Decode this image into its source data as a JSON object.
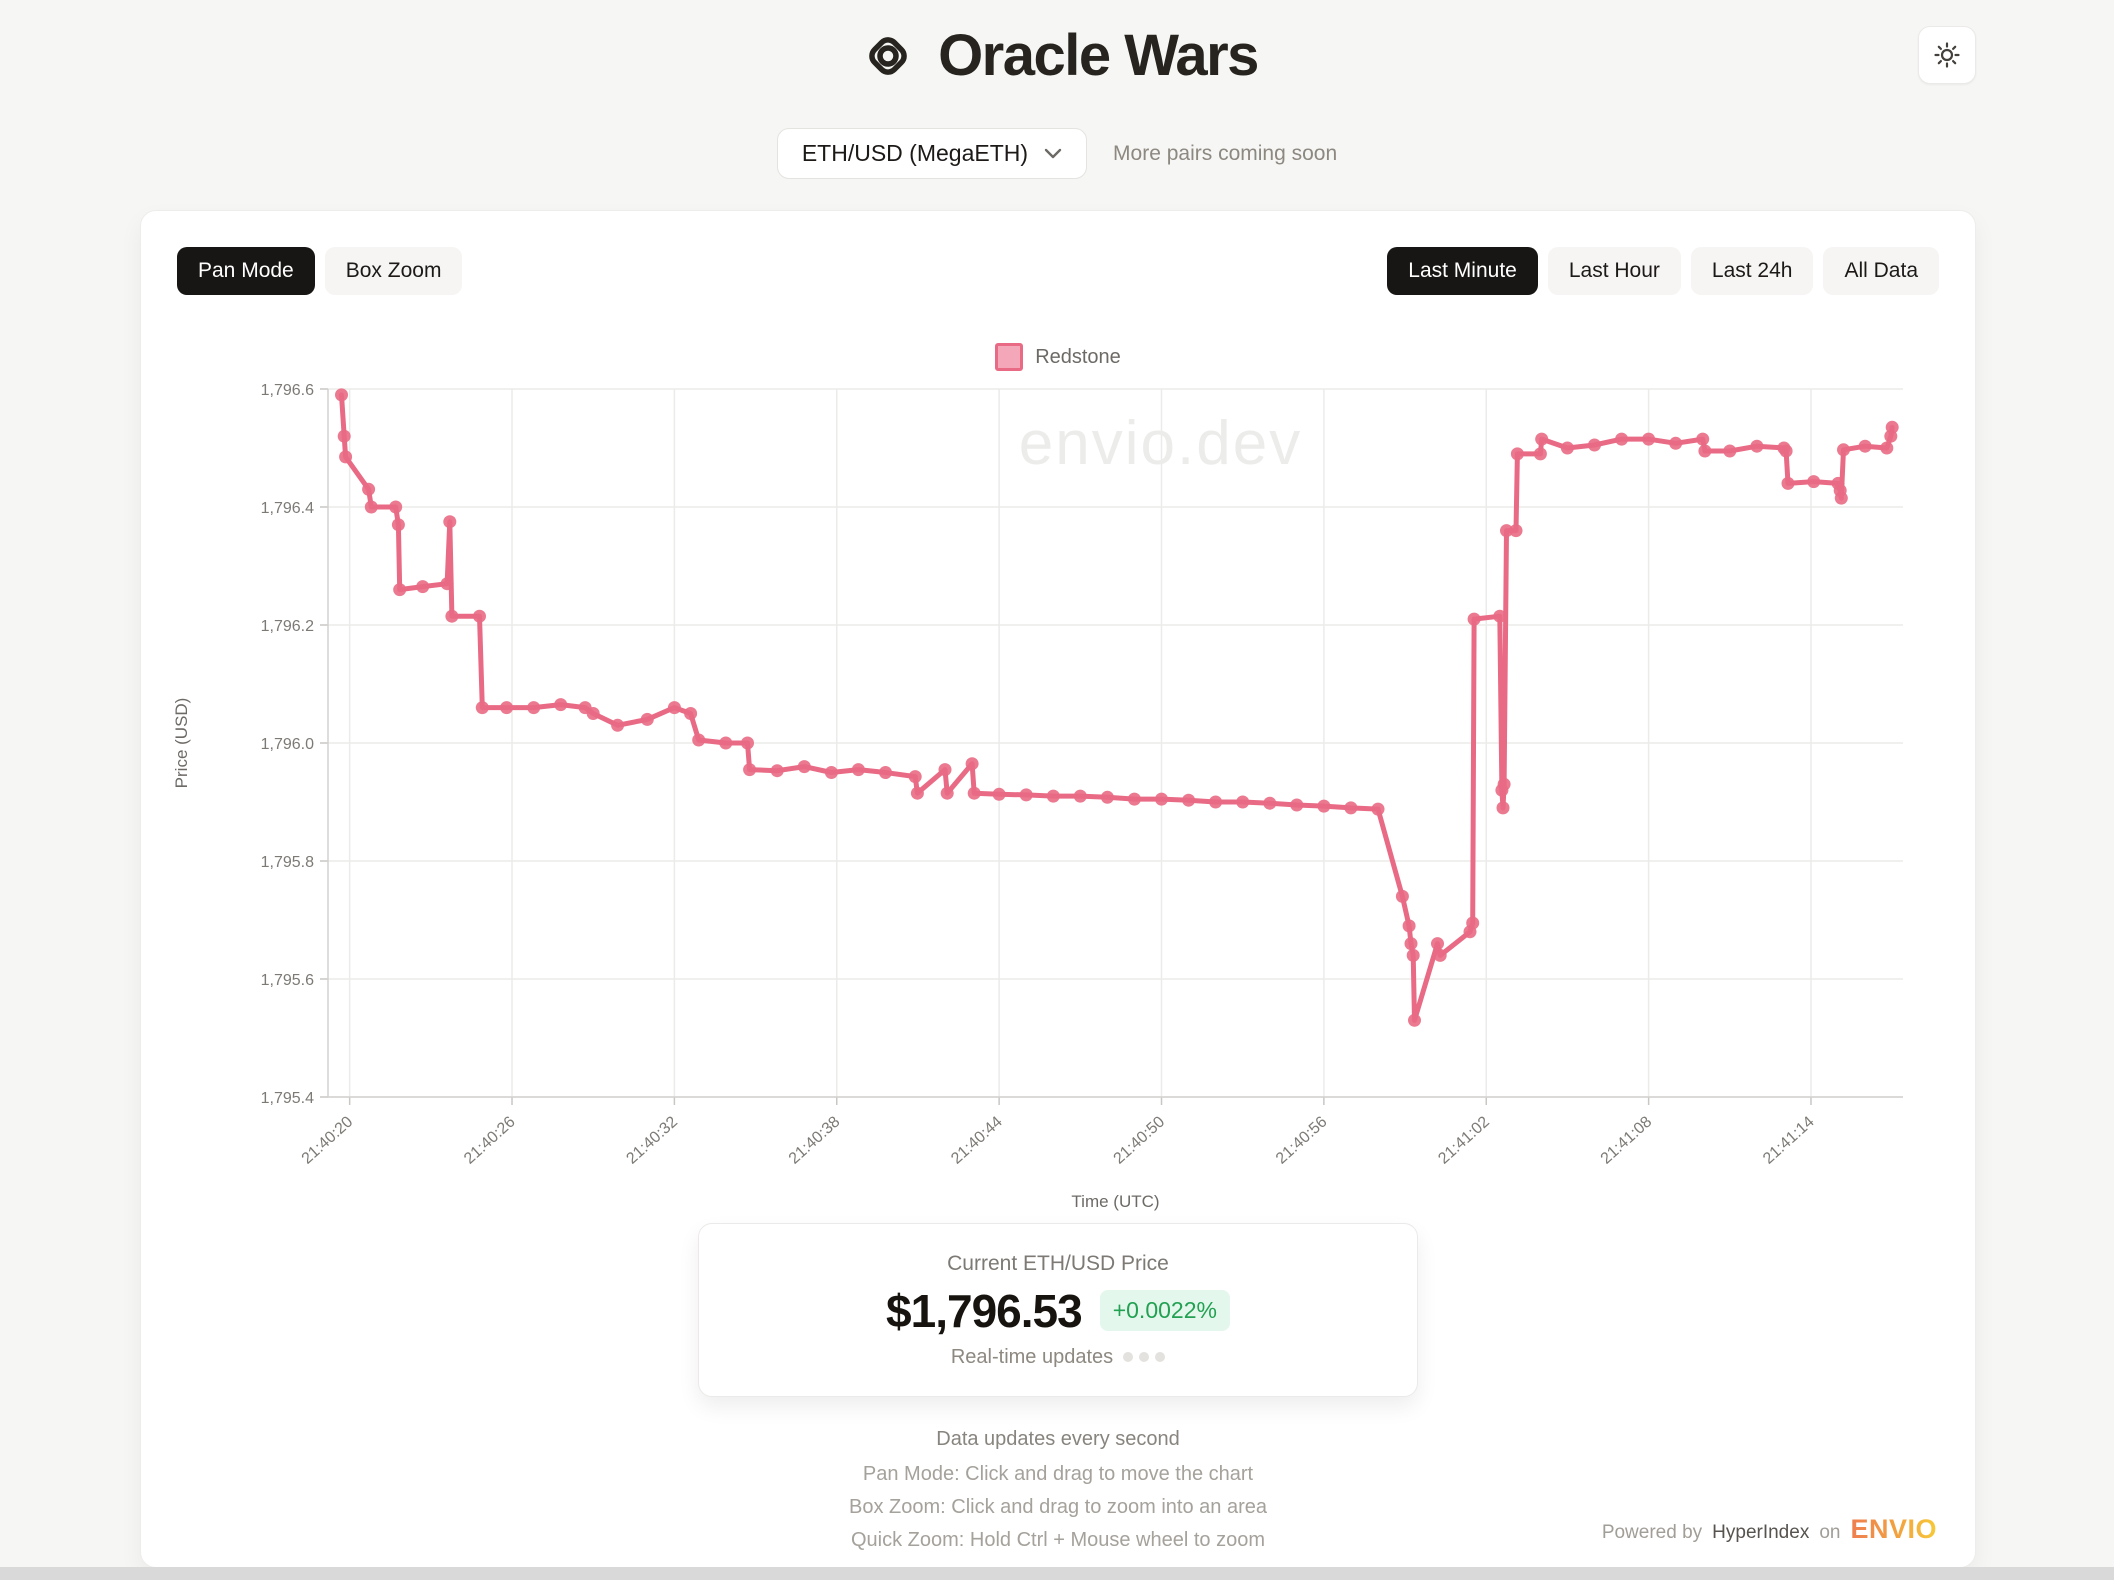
{
  "header": {
    "title": "Oracle Wars",
    "logo_icon": "diamond-o-icon",
    "theme_toggle_icon": "sun-icon"
  },
  "pair_selector": {
    "selected": "ETH/USD (MegaETH)",
    "note": "More pairs coming soon"
  },
  "toolbar": {
    "modes": [
      {
        "label": "Pan Mode",
        "active": true
      },
      {
        "label": "Box Zoom",
        "active": false
      }
    ],
    "ranges": [
      {
        "label": "Last Minute",
        "active": true
      },
      {
        "label": "Last Hour",
        "active": false
      },
      {
        "label": "Last 24h",
        "active": false
      },
      {
        "label": "All Data",
        "active": false
      }
    ]
  },
  "theme": {
    "accent_pink": "#E96A84",
    "legend_fill": "#F4A7B9",
    "active_button_bg": "#181614",
    "badge_green_text": "#22a152",
    "badge_green_bg": "#e4f7ec",
    "envio_gradient": [
      "#EF7E50",
      "#F7CA38"
    ],
    "grid_color": "#ebebe9"
  },
  "chart_data": {
    "type": "line",
    "xlabel": "Time (UTC)",
    "ylabel": "Price (USD)",
    "watermark": "envio.dev",
    "legend_position": "top-center",
    "grid": true,
    "ylim": [
      1795.4,
      1796.6
    ],
    "x_domain": [
      -0.8,
      57.4
    ],
    "y_ticks": [
      {
        "v": 1795.4,
        "label": "1,795.4"
      },
      {
        "v": 1795.6,
        "label": "1,795.6"
      },
      {
        "v": 1795.8,
        "label": "1,795.8"
      },
      {
        "v": 1796.0,
        "label": "1,796.0"
      },
      {
        "v": 1796.2,
        "label": "1,796.2"
      },
      {
        "v": 1796.4,
        "label": "1,796.4"
      },
      {
        "v": 1796.6,
        "label": "1,796.6"
      }
    ],
    "x_ticks": [
      {
        "t": 0,
        "label": "21:40:20"
      },
      {
        "t": 6,
        "label": "21:40:26"
      },
      {
        "t": 12,
        "label": "21:40:32"
      },
      {
        "t": 18,
        "label": "21:40:38"
      },
      {
        "t": 24,
        "label": "21:40:44"
      },
      {
        "t": 30,
        "label": "21:40:50"
      },
      {
        "t": 36,
        "label": "21:40:56"
      },
      {
        "t": 42,
        "label": "21:41:02"
      },
      {
        "t": 48,
        "label": "21:41:08"
      },
      {
        "t": 54,
        "label": "21:41:14"
      }
    ],
    "series": [
      {
        "name": "Redstone",
        "color": "#E96A84",
        "legend_fill": "#F4A7B9",
        "points": [
          [
            -0.3,
            1796.59
          ],
          [
            -0.2,
            1796.52
          ],
          [
            -0.15,
            1796.485
          ],
          [
            0.7,
            1796.43
          ],
          [
            0.8,
            1796.4
          ],
          [
            1.7,
            1796.4
          ],
          [
            1.8,
            1796.37
          ],
          [
            1.85,
            1796.26
          ],
          [
            2.7,
            1796.265
          ],
          [
            3.6,
            1796.27
          ],
          [
            3.7,
            1796.375
          ],
          [
            3.78,
            1796.215
          ],
          [
            4.8,
            1796.215
          ],
          [
            4.9,
            1796.06
          ],
          [
            5.8,
            1796.06
          ],
          [
            6.8,
            1796.06
          ],
          [
            7.8,
            1796.065
          ],
          [
            8.7,
            1796.06
          ],
          [
            9.0,
            1796.05
          ],
          [
            9.9,
            1796.03
          ],
          [
            11.0,
            1796.04
          ],
          [
            12.0,
            1796.06
          ],
          [
            12.6,
            1796.05
          ],
          [
            12.9,
            1796.005
          ],
          [
            13.9,
            1796.0
          ],
          [
            14.7,
            1796.0
          ],
          [
            14.78,
            1795.955
          ],
          [
            15.8,
            1795.953
          ],
          [
            16.8,
            1795.96
          ],
          [
            17.8,
            1795.95
          ],
          [
            18.8,
            1795.955
          ],
          [
            19.8,
            1795.95
          ],
          [
            20.9,
            1795.943
          ],
          [
            20.98,
            1795.915
          ],
          [
            22.0,
            1795.955
          ],
          [
            22.08,
            1795.915
          ],
          [
            23.0,
            1795.965
          ],
          [
            23.08,
            1795.915
          ],
          [
            24.0,
            1795.913
          ],
          [
            25.0,
            1795.912
          ],
          [
            26.0,
            1795.91
          ],
          [
            27.0,
            1795.91
          ],
          [
            28.0,
            1795.908
          ],
          [
            29.0,
            1795.905
          ],
          [
            30.0,
            1795.905
          ],
          [
            31.0,
            1795.903
          ],
          [
            32.0,
            1795.9
          ],
          [
            33.0,
            1795.9
          ],
          [
            34.0,
            1795.898
          ],
          [
            35.0,
            1795.895
          ],
          [
            36.0,
            1795.893
          ],
          [
            37.0,
            1795.89
          ],
          [
            38.0,
            1795.888
          ],
          [
            38.9,
            1795.74
          ],
          [
            39.15,
            1795.69
          ],
          [
            39.22,
            1795.66
          ],
          [
            39.3,
            1795.64
          ],
          [
            39.35,
            1795.53
          ],
          [
            40.2,
            1795.66
          ],
          [
            40.3,
            1795.64
          ],
          [
            41.4,
            1795.68
          ],
          [
            41.5,
            1795.695
          ],
          [
            41.55,
            1796.21
          ],
          [
            42.5,
            1796.215
          ],
          [
            42.58,
            1795.92
          ],
          [
            42.62,
            1795.89
          ],
          [
            42.66,
            1795.93
          ],
          [
            42.75,
            1796.36
          ],
          [
            43.1,
            1796.36
          ],
          [
            43.15,
            1796.49
          ],
          [
            44.0,
            1796.49
          ],
          [
            44.05,
            1796.515
          ],
          [
            45.0,
            1796.5
          ],
          [
            46.0,
            1796.505
          ],
          [
            47.0,
            1796.515
          ],
          [
            48.0,
            1796.515
          ],
          [
            49.0,
            1796.508
          ],
          [
            50.0,
            1796.515
          ],
          [
            50.08,
            1796.495
          ],
          [
            51.0,
            1796.495
          ],
          [
            52.0,
            1796.503
          ],
          [
            53.0,
            1796.5
          ],
          [
            53.08,
            1796.495
          ],
          [
            53.15,
            1796.44
          ],
          [
            54.1,
            1796.443
          ],
          [
            55.0,
            1796.44
          ],
          [
            55.08,
            1796.428
          ],
          [
            55.12,
            1796.415
          ],
          [
            55.2,
            1796.497
          ],
          [
            56.0,
            1796.503
          ],
          [
            56.8,
            1796.5
          ],
          [
            56.95,
            1796.52
          ],
          [
            57.0,
            1796.535
          ]
        ]
      }
    ]
  },
  "price_card": {
    "title": "Current ETH/USD Price",
    "price": "$1,796.53",
    "change": "+0.0022%",
    "subtitle": "Real-time updates"
  },
  "footer": {
    "lines": [
      "Data updates every second",
      "Pan Mode: Click and drag to move the chart",
      "Box Zoom: Click and drag to zoom into an area",
      "Quick Zoom: Hold Ctrl + Mouse wheel to zoom"
    ]
  },
  "credits": {
    "powered_by": "Powered by",
    "hyperindex": "HyperIndex",
    "on": "on",
    "envio": "ENVIO"
  }
}
